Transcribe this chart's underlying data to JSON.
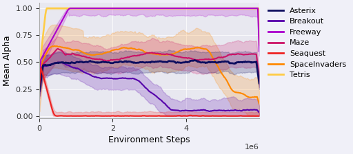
{
  "title": "",
  "xlabel": "Environment Steps",
  "ylabel": "Mean Alpha",
  "xlim": [
    0,
    6000000
  ],
  "ylim": [
    -0.02,
    1.05
  ],
  "background_color": "#e8e8f0",
  "fig_background": "#f0f0f8",
  "legend_labels": [
    "Asterix",
    "Breakout",
    "Freeway",
    "Maze",
    "Seaquest",
    "SpaceInvaders",
    "Tetris"
  ],
  "line_colors": [
    "#0d0d5e",
    "#5500aa",
    "#aa00cc",
    "#cc1166",
    "#ee2222",
    "#ff8800",
    "#ffcc44"
  ],
  "steps": 300,
  "seed": 42
}
